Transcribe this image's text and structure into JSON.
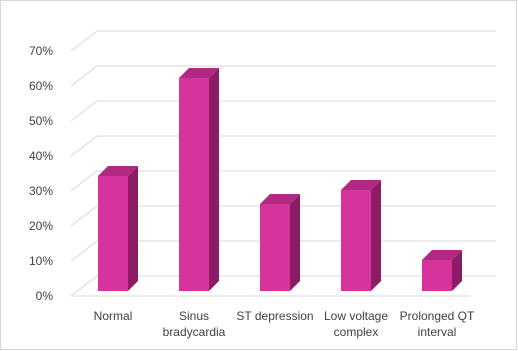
{
  "chart_data": {
    "type": "bar",
    "style": "3d-column",
    "categories": [
      [
        "Normal"
      ],
      [
        "Sinus",
        "bradycardia"
      ],
      [
        "ST depression"
      ],
      [
        "Low voltage",
        "complex"
      ],
      [
        "Prolonged QT",
        "interval"
      ]
    ],
    "values": [
      36,
      64,
      28,
      32,
      12
    ],
    "y_ticks": [
      "0%",
      "10%",
      "20%",
      "30%",
      "40%",
      "50%",
      "60%",
      "70%"
    ],
    "ylim": [
      0,
      70
    ],
    "grid": true,
    "legend": "none",
    "title": "",
    "xlabel": "",
    "ylabel": "",
    "colors": {
      "bar_front": "#d6349c",
      "bar_side": "#8c1c66",
      "bar_top": "#b02a84",
      "grid": "#d9d9d9",
      "axis_text": "#404040"
    }
  }
}
